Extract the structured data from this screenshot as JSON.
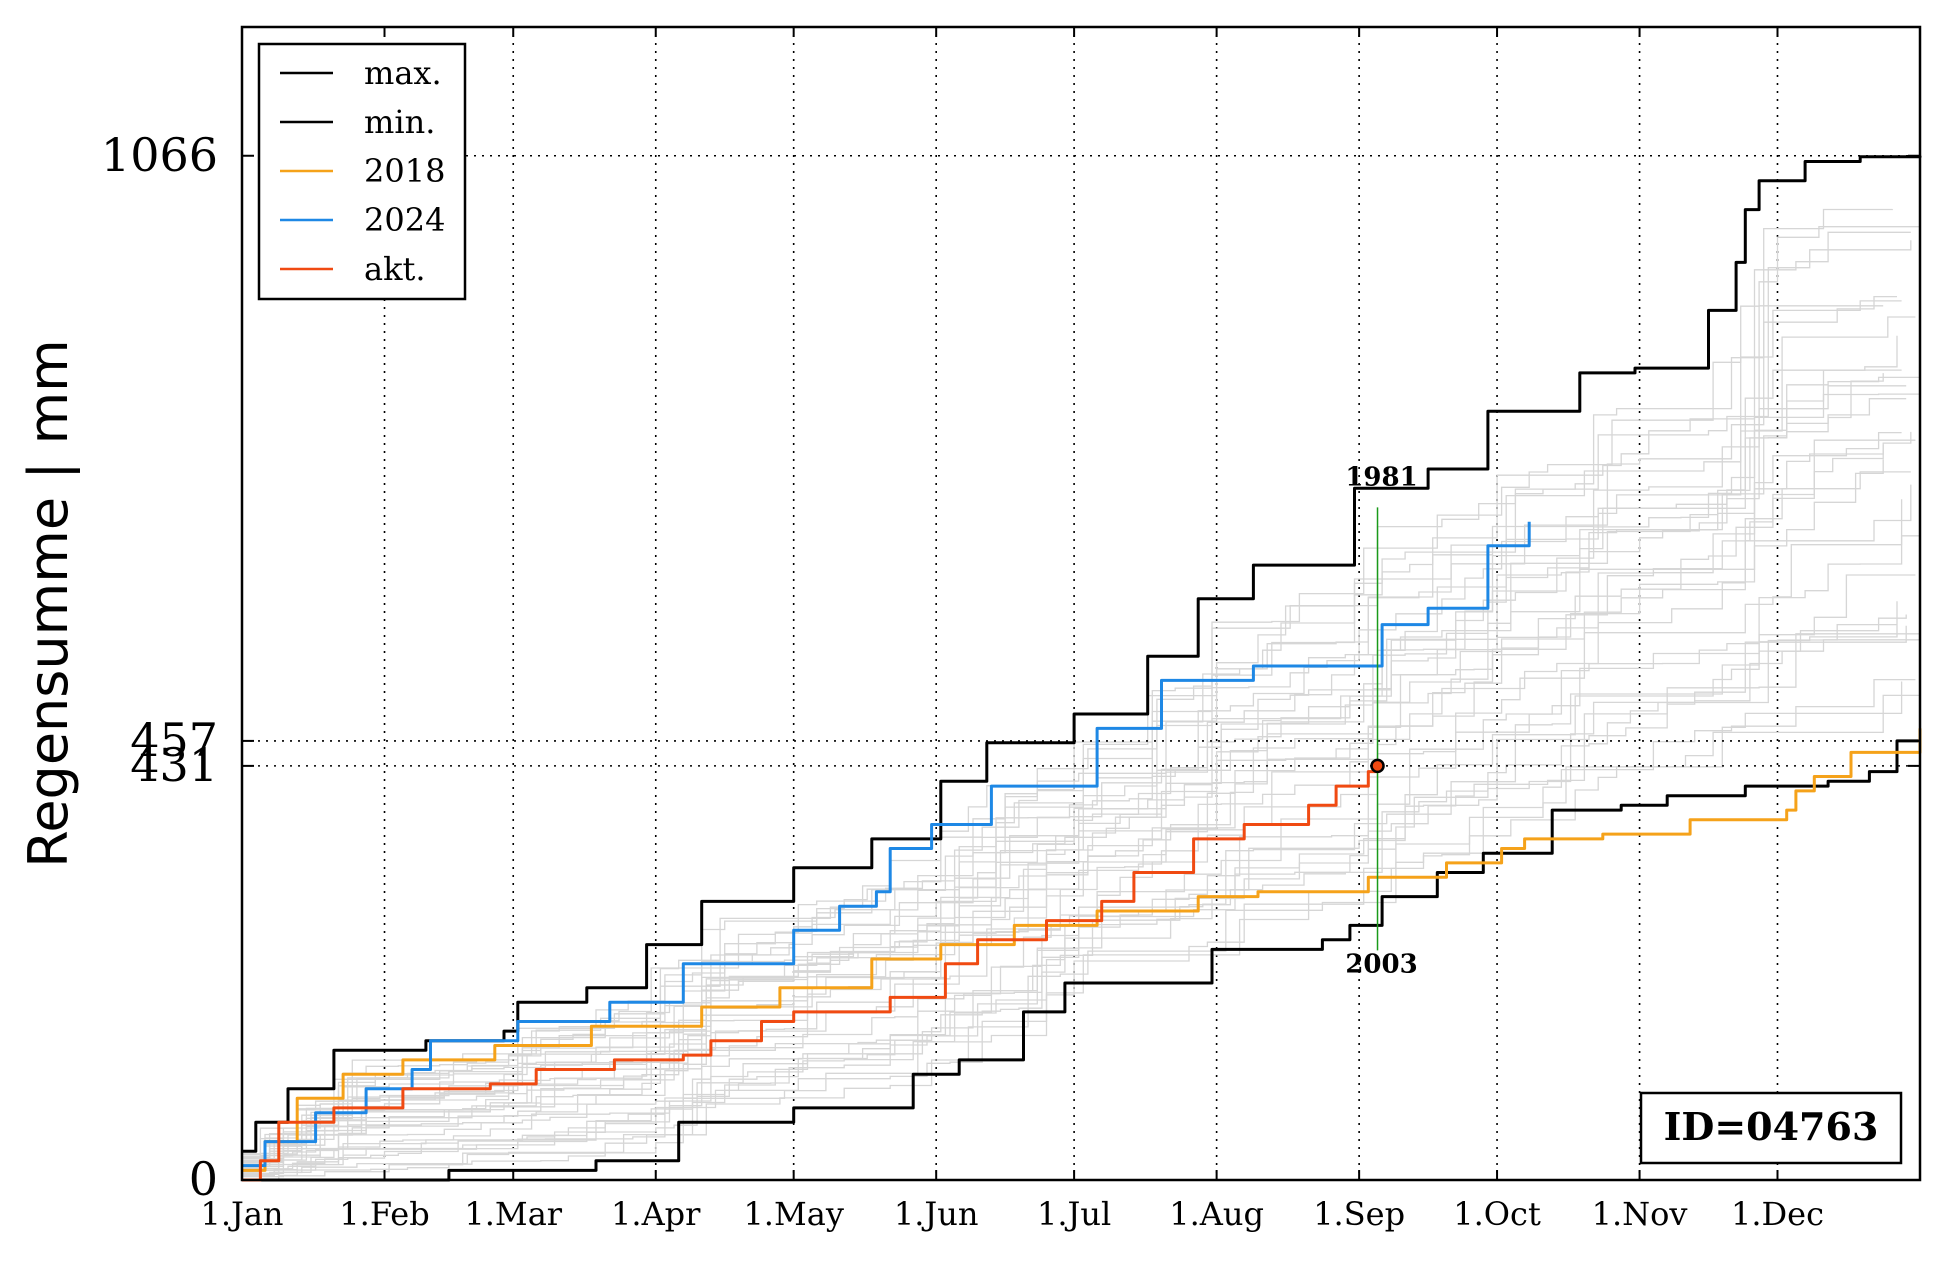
{
  "chart_data": {
    "type": "line",
    "ylabel": "Regensumme | mm",
    "ylim": [
      0,
      1200
    ],
    "y_ticks": [
      {
        "value": 0,
        "label": "0"
      },
      {
        "value": 431,
        "label": "431"
      },
      {
        "value": 457,
        "label": "457"
      },
      {
        "value": 1066,
        "label": "1066"
      }
    ],
    "x_ticks": [
      "1.Jan",
      "1.Feb",
      "1.Mar",
      "1.Apr",
      "1.May",
      "1.Jun",
      "1.Jul",
      "1.Aug",
      "1.Sep",
      "1.Oct",
      "1.Nov",
      "1.Dec"
    ],
    "x_tick_days": [
      0,
      31,
      59,
      90,
      120,
      151,
      181,
      212,
      243,
      273,
      304,
      334
    ],
    "xlim": [
      0,
      365
    ],
    "grid": true,
    "legend_position": "top-left",
    "legend": [
      {
        "label": "max.",
        "color": "#000000"
      },
      {
        "label": "min.",
        "color": "#000000"
      },
      {
        "label": "2018",
        "color": "#f5a21a"
      },
      {
        "label": "2024",
        "color": "#1e88e5"
      },
      {
        "label": "akt.",
        "color": "#f04a12"
      }
    ],
    "series": [
      {
        "name": "max.",
        "color": "#000000",
        "width": 3,
        "points": [
          [
            0,
            30
          ],
          [
            3,
            60
          ],
          [
            10,
            95
          ],
          [
            20,
            135
          ],
          [
            40,
            145
          ],
          [
            57,
            155
          ],
          [
            60,
            185
          ],
          [
            75,
            200
          ],
          [
            88,
            245
          ],
          [
            100,
            290
          ],
          [
            120,
            325
          ],
          [
            137,
            355
          ],
          [
            152,
            415
          ],
          [
            162,
            455
          ],
          [
            181,
            485
          ],
          [
            197,
            545
          ],
          [
            208,
            605
          ],
          [
            220,
            640
          ],
          [
            242,
            720
          ],
          [
            250,
            720
          ],
          [
            258,
            740
          ],
          [
            271,
            800
          ],
          [
            291,
            840
          ],
          [
            303,
            845
          ],
          [
            319,
            905
          ],
          [
            325,
            955
          ],
          [
            327,
            1010
          ],
          [
            330,
            1040
          ],
          [
            340,
            1060
          ],
          [
            352,
            1065
          ],
          [
            365,
            1066
          ]
        ]
      },
      {
        "name": "min.",
        "color": "#000000",
        "width": 3,
        "points": [
          [
            0,
            0
          ],
          [
            45,
            10
          ],
          [
            77,
            20
          ],
          [
            95,
            60
          ],
          [
            120,
            75
          ],
          [
            146,
            110
          ],
          [
            156,
            125
          ],
          [
            170,
            175
          ],
          [
            179,
            205
          ],
          [
            196,
            205
          ],
          [
            211,
            240
          ],
          [
            235,
            250
          ],
          [
            241,
            265
          ],
          [
            248,
            295
          ],
          [
            260,
            320
          ],
          [
            270,
            340
          ],
          [
            285,
            385
          ],
          [
            300,
            390
          ],
          [
            310,
            400
          ],
          [
            327,
            410
          ],
          [
            345,
            415
          ],
          [
            354,
            425
          ],
          [
            360,
            457
          ],
          [
            365,
            457
          ]
        ]
      },
      {
        "name": "2018",
        "color": "#f5a21a",
        "width": 3,
        "points": [
          [
            0,
            10
          ],
          [
            5,
            40
          ],
          [
            12,
            85
          ],
          [
            22,
            110
          ],
          [
            35,
            125
          ],
          [
            55,
            140
          ],
          [
            76,
            160
          ],
          [
            100,
            180
          ],
          [
            117,
            200
          ],
          [
            137,
            230
          ],
          [
            152,
            245
          ],
          [
            168,
            265
          ],
          [
            186,
            280
          ],
          [
            208,
            295
          ],
          [
            221,
            300
          ],
          [
            245,
            315
          ],
          [
            262,
            330
          ],
          [
            274,
            345
          ],
          [
            279,
            355
          ],
          [
            296,
            360
          ],
          [
            315,
            375
          ],
          [
            336,
            385
          ],
          [
            338,
            405
          ],
          [
            342,
            420
          ],
          [
            350,
            445
          ],
          [
            365,
            470
          ]
        ]
      },
      {
        "name": "2024",
        "color": "#1e88e5",
        "width": 3,
        "points": [
          [
            0,
            15
          ],
          [
            5,
            40
          ],
          [
            16,
            70
          ],
          [
            27,
            95
          ],
          [
            37,
            115
          ],
          [
            41,
            145
          ],
          [
            60,
            165
          ],
          [
            80,
            185
          ],
          [
            96,
            225
          ],
          [
            120,
            260
          ],
          [
            130,
            285
          ],
          [
            138,
            300
          ],
          [
            141,
            345
          ],
          [
            150,
            370
          ],
          [
            163,
            410
          ],
          [
            186,
            470
          ],
          [
            200,
            520
          ],
          [
            220,
            535
          ],
          [
            248,
            578
          ],
          [
            258,
            595
          ],
          [
            271,
            660
          ],
          [
            280,
            685
          ]
        ]
      },
      {
        "name": "akt.",
        "color": "#f04a12",
        "width": 3,
        "points": [
          [
            0,
            0
          ],
          [
            4,
            20
          ],
          [
            8,
            60
          ],
          [
            20,
            75
          ],
          [
            35,
            95
          ],
          [
            54,
            100
          ],
          [
            64,
            115
          ],
          [
            81,
            125
          ],
          [
            96,
            130
          ],
          [
            102,
            145
          ],
          [
            113,
            165
          ],
          [
            120,
            175
          ],
          [
            141,
            190
          ],
          [
            153,
            225
          ],
          [
            160,
            250
          ],
          [
            175,
            270
          ],
          [
            187,
            290
          ],
          [
            194,
            320
          ],
          [
            207,
            355
          ],
          [
            218,
            370
          ],
          [
            232,
            390
          ],
          [
            238,
            410
          ],
          [
            245,
            425
          ],
          [
            247,
            431
          ]
        ]
      }
    ],
    "current_point": {
      "x": 247,
      "y": 431
    },
    "annotations": [
      {
        "text": "1981",
        "x": 247,
        "y": 700,
        "position": "above"
      },
      {
        "text": "2003",
        "x": 247,
        "y": 265,
        "position": "below"
      }
    ],
    "hlines": [
      431,
      457,
      1066
    ],
    "id_label": "ID=04763",
    "background_series_color": "#d6d6d6"
  }
}
